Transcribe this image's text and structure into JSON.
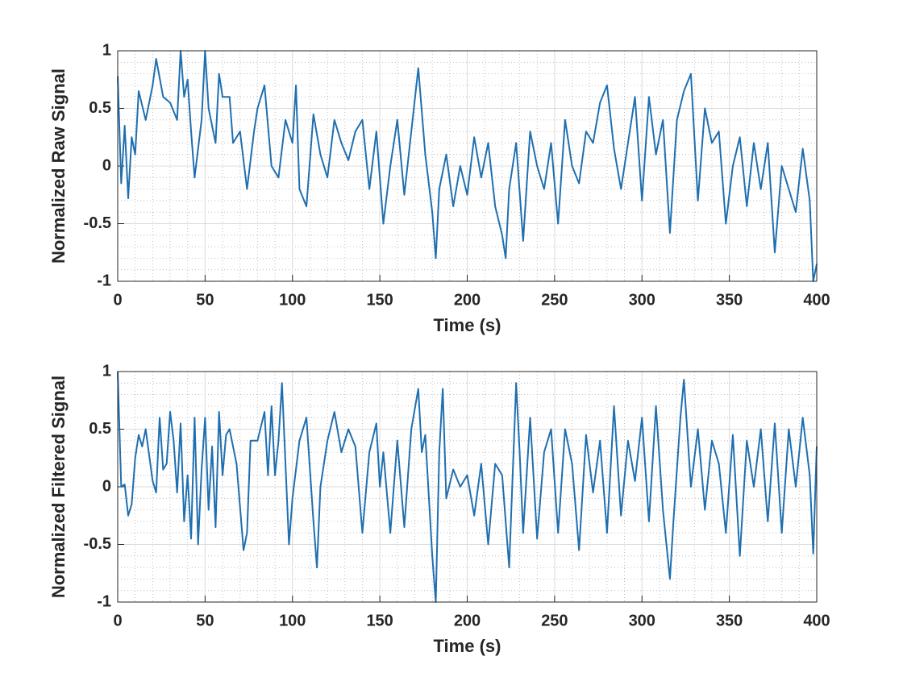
{
  "chart_data": [
    {
      "type": "line",
      "xlabel": "Time (s)",
      "ylabel": "Normalized Raw Signal",
      "color": "#1f6fb0",
      "xlim": [
        0,
        400
      ],
      "xticks": [
        0,
        50,
        100,
        150,
        200,
        250,
        300,
        350,
        400
      ],
      "ylim": [
        -1,
        1
      ],
      "yticks": [
        -1,
        -0.5,
        0,
        0.5,
        1
      ],
      "grid": true,
      "minor_grid": true,
      "x": [
        0,
        2,
        4,
        6,
        8,
        10,
        12,
        16,
        20,
        22,
        26,
        30,
        34,
        36,
        38,
        40,
        42,
        44,
        48,
        50,
        52,
        56,
        58,
        60,
        64,
        66,
        70,
        74,
        78,
        80,
        84,
        88,
        92,
        96,
        100,
        102,
        104,
        108,
        112,
        116,
        120,
        124,
        128,
        132,
        136,
        140,
        144,
        148,
        152,
        156,
        160,
        164,
        168,
        172,
        176,
        180,
        182,
        184,
        188,
        192,
        196,
        200,
        204,
        208,
        212,
        216,
        220,
        222,
        224,
        228,
        232,
        236,
        240,
        244,
        248,
        252,
        256,
        260,
        264,
        268,
        272,
        276,
        280,
        284,
        288,
        292,
        296,
        300,
        304,
        308,
        312,
        316,
        320,
        324,
        328,
        332,
        336,
        340,
        344,
        348,
        352,
        356,
        360,
        364,
        368,
        372,
        376,
        380,
        384,
        388,
        392,
        396,
        398,
        400
      ],
      "values": [
        0.78,
        -0.15,
        0.35,
        -0.28,
        0.25,
        0.1,
        0.65,
        0.4,
        0.7,
        0.93,
        0.6,
        0.55,
        0.4,
        1,
        0.6,
        0.75,
        0.3,
        -0.1,
        0.4,
        1,
        0.5,
        0.2,
        0.8,
        0.6,
        0.6,
        0.2,
        0.3,
        -0.2,
        0.3,
        0.5,
        0.7,
        0,
        -0.1,
        0.4,
        0.2,
        0.7,
        -0.2,
        -0.35,
        0.45,
        0.1,
        -0.1,
        0.4,
        0.2,
        0.05,
        0.3,
        0.4,
        -0.2,
        0.3,
        -0.5,
        0,
        0.4,
        -0.25,
        0.3,
        0.85,
        0.1,
        -0.4,
        -0.8,
        -0.2,
        0.1,
        -0.35,
        0,
        -0.25,
        0.25,
        -0.1,
        0.2,
        -0.35,
        -0.6,
        -0.8,
        -0.2,
        0.2,
        -0.65,
        0.3,
        0,
        -0.2,
        0.2,
        -0.5,
        0.4,
        0,
        -0.15,
        0.3,
        0.2,
        0.55,
        0.7,
        0.15,
        -0.2,
        0.2,
        0.6,
        -0.3,
        0.6,
        0.1,
        0.4,
        -0.58,
        0.4,
        0.65,
        0.8,
        -0.3,
        0.5,
        0.2,
        0.3,
        -0.5,
        0,
        0.25,
        -0.35,
        0.2,
        -0.2,
        0.2,
        -0.75,
        0,
        -0.2,
        -0.4,
        0.15,
        -0.3,
        -1,
        -0.85
      ]
    },
    {
      "type": "line",
      "xlabel": "Time (s)",
      "ylabel": "Normalized Filtered Signal",
      "color": "#1f6fb0",
      "xlim": [
        0,
        400
      ],
      "xticks": [
        0,
        50,
        100,
        150,
        200,
        250,
        300,
        350,
        400
      ],
      "ylim": [
        -1,
        1
      ],
      "yticks": [
        -1,
        -0.5,
        0,
        0.5,
        1
      ],
      "grid": true,
      "minor_grid": true,
      "x": [
        0,
        2,
        4,
        6,
        8,
        10,
        12,
        14,
        16,
        20,
        22,
        24,
        26,
        28,
        30,
        32,
        34,
        36,
        38,
        40,
        42,
        44,
        46,
        48,
        50,
        52,
        54,
        56,
        58,
        60,
        62,
        64,
        68,
        72,
        74,
        76,
        80,
        84,
        86,
        88,
        90,
        92,
        94,
        96,
        98,
        100,
        104,
        108,
        112,
        114,
        116,
        120,
        124,
        128,
        132,
        136,
        140,
        144,
        148,
        150,
        152,
        156,
        160,
        164,
        168,
        172,
        174,
        176,
        180,
        182,
        184,
        186,
        188,
        192,
        196,
        200,
        204,
        208,
        212,
        216,
        220,
        224,
        228,
        230,
        232,
        236,
        240,
        244,
        248,
        252,
        256,
        260,
        264,
        268,
        272,
        276,
        280,
        284,
        288,
        292,
        296,
        300,
        304,
        308,
        312,
        316,
        318,
        322,
        324,
        328,
        332,
        336,
        340,
        344,
        348,
        352,
        356,
        360,
        364,
        368,
        372,
        376,
        380,
        384,
        388,
        392,
        396,
        398,
        400
      ],
      "values": [
        1,
        0,
        0.02,
        -0.25,
        -0.15,
        0.25,
        0.45,
        0.35,
        0.5,
        0.05,
        -0.05,
        0.6,
        0.15,
        0.2,
        0.65,
        0.4,
        -0.05,
        0.55,
        -0.3,
        0.1,
        -0.45,
        0.6,
        -0.5,
        0.15,
        0.6,
        -0.2,
        0.35,
        -0.35,
        0.65,
        0.1,
        0.45,
        0.5,
        0.2,
        -0.55,
        -0.4,
        0.4,
        0.4,
        0.65,
        0.1,
        0.7,
        0.1,
        0.4,
        0.9,
        0.2,
        -0.5,
        -0.1,
        0.4,
        0.6,
        -0.3,
        -0.7,
        0,
        0.4,
        0.65,
        0.3,
        0.5,
        0.35,
        -0.4,
        0.3,
        0.55,
        0,
        0.3,
        -0.4,
        0.4,
        -0.35,
        0.5,
        0.85,
        0.3,
        0.45,
        -0.6,
        -1,
        0.3,
        0.85,
        -0.1,
        0.15,
        0,
        0.1,
        -0.25,
        0.2,
        -0.5,
        0.2,
        0.1,
        -0.7,
        0.9,
        0.3,
        -0.4,
        0.6,
        -0.45,
        0.3,
        0.5,
        -0.4,
        0.5,
        0.2,
        -0.55,
        0.45,
        -0.05,
        0.4,
        -0.4,
        0.7,
        -0.25,
        0.4,
        0.05,
        0.6,
        -0.3,
        0.7,
        -0.2,
        -0.8,
        -0.3,
        0.6,
        0.93,
        0,
        0.5,
        -0.2,
        0.4,
        0.2,
        -0.4,
        0.45,
        -0.6,
        0.4,
        0,
        0.5,
        -0.3,
        0.55,
        -0.4,
        0.5,
        0,
        0.6,
        0.1,
        -0.58,
        0.35
      ]
    }
  ]
}
